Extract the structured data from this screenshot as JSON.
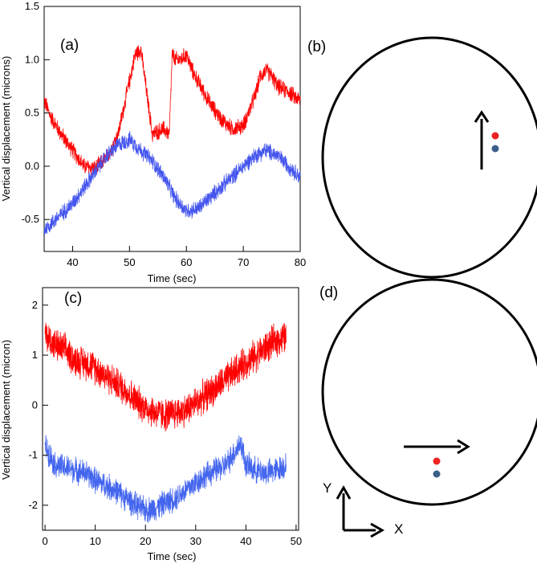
{
  "figure_labels": {
    "a": "(a)",
    "b": "(b)",
    "c": "(c)",
    "d": "(d)"
  },
  "axes_labels": {
    "y_axis": "Y",
    "x_axis": "X"
  },
  "colors": {
    "red": "#ff0000",
    "blue": "#4455ee",
    "dot_red": "#ee2222",
    "dot_blue": "#3a5f8a"
  },
  "chart_data": [
    {
      "id": "a",
      "type": "line",
      "title": "",
      "xlabel": "Time (sec)",
      "ylabel": "Vertical displacement (microns)",
      "xlim": [
        35,
        80
      ],
      "ylim": [
        -0.8,
        1.5
      ],
      "xticks": [
        40,
        50,
        60,
        70,
        80
      ],
      "yticks": [
        -0.5,
        0.0,
        0.5,
        1.0,
        1.5
      ],
      "xtick_labels": [
        "40",
        "50",
        "60",
        "70",
        "80"
      ],
      "ytick_labels": [
        "-0.5",
        "0.0",
        "0.5",
        "1.0",
        "1.5"
      ],
      "series": [
        {
          "name": "red",
          "color": "#ff0000",
          "noise": 0.09,
          "x": [
            35,
            36,
            38,
            40,
            42,
            44,
            46,
            48,
            50,
            51,
            52,
            53,
            54,
            56,
            57,
            57.5,
            58,
            59,
            60,
            61,
            62,
            63,
            64,
            66,
            68,
            70,
            72,
            73,
            74,
            75,
            76,
            77,
            78,
            79,
            80
          ],
          "y": [
            0.62,
            0.48,
            0.3,
            0.15,
            0.0,
            -0.02,
            0.08,
            0.3,
            0.8,
            1.05,
            1.1,
            0.7,
            0.3,
            0.35,
            0.3,
            1.05,
            1.0,
            1.0,
            1.05,
            0.9,
            0.8,
            0.7,
            0.6,
            0.45,
            0.35,
            0.38,
            0.65,
            0.85,
            0.9,
            0.85,
            0.75,
            0.72,
            0.7,
            0.65,
            0.62
          ]
        },
        {
          "name": "blue",
          "color": "#4455ee",
          "noise": 0.09,
          "x": [
            35,
            38,
            40,
            42,
            44,
            46,
            48,
            50,
            52,
            54,
            56,
            58,
            60,
            62,
            64,
            66,
            68,
            70,
            72,
            74,
            76,
            78,
            80
          ],
          "y": [
            -0.6,
            -0.45,
            -0.35,
            -0.2,
            -0.05,
            0.1,
            0.2,
            0.25,
            0.15,
            0.05,
            -0.1,
            -0.3,
            -0.42,
            -0.4,
            -0.3,
            -0.2,
            -0.1,
            0.0,
            0.1,
            0.15,
            0.1,
            0.0,
            -0.1
          ]
        }
      ]
    },
    {
      "id": "c",
      "type": "line",
      "title": "",
      "xlabel": "Time (sec)",
      "ylabel": "Vertical displacement (micron)",
      "xlim": [
        -0.5,
        50.5
      ],
      "ylim": [
        -2.5,
        2.35
      ],
      "xticks": [
        0,
        10,
        20,
        30,
        40,
        50
      ],
      "yticks": [
        -2,
        -1,
        0,
        1,
        2
      ],
      "xtick_labels": [
        "0",
        "10",
        "20",
        "30",
        "40",
        "50"
      ],
      "ytick_labels": [
        "-2",
        "-1",
        "0",
        "1",
        "2"
      ],
      "series": [
        {
          "name": "red",
          "color": "#ff0000",
          "noise": 0.38,
          "x": [
            0,
            2,
            4,
            6,
            8,
            10,
            12,
            14,
            16,
            18,
            20,
            22,
            24,
            26,
            28,
            30,
            32,
            34,
            36,
            38,
            40,
            42,
            44,
            46,
            48
          ],
          "y": [
            1.4,
            1.2,
            1.1,
            0.9,
            0.85,
            0.75,
            0.6,
            0.45,
            0.3,
            0.1,
            -0.05,
            -0.15,
            -0.2,
            -0.15,
            -0.1,
            0.05,
            0.2,
            0.35,
            0.5,
            0.7,
            0.85,
            1.0,
            1.15,
            1.3,
            1.35
          ]
        },
        {
          "name": "blue",
          "color": "#4466ee",
          "noise": 0.3,
          "x": [
            0,
            1,
            2,
            4,
            6,
            8,
            10,
            12,
            14,
            16,
            18,
            20,
            22,
            24,
            26,
            28,
            30,
            32,
            34,
            36,
            38,
            39,
            40,
            42,
            44,
            46,
            48
          ],
          "y": [
            -0.8,
            -1.0,
            -1.2,
            -1.25,
            -1.3,
            -1.35,
            -1.5,
            -1.6,
            -1.7,
            -1.85,
            -2.0,
            -2.1,
            -2.05,
            -1.95,
            -1.85,
            -1.7,
            -1.55,
            -1.4,
            -1.3,
            -1.2,
            -0.9,
            -0.75,
            -1.2,
            -1.3,
            -1.35,
            -1.3,
            -1.2
          ]
        }
      ]
    }
  ]
}
